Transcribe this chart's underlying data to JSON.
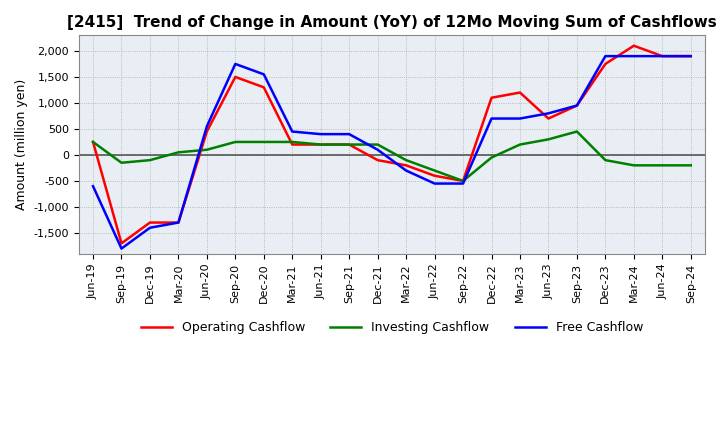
{
  "title": "[2415]  Trend of Change in Amount (YoY) of 12Mo Moving Sum of Cashflows",
  "ylabel": "Amount (million yen)",
  "x_labels": [
    "Jun-19",
    "Sep-19",
    "Dec-19",
    "Mar-20",
    "Jun-20",
    "Sep-20",
    "Dec-20",
    "Mar-21",
    "Jun-21",
    "Sep-21",
    "Dec-21",
    "Mar-22",
    "Jun-22",
    "Sep-22",
    "Dec-22",
    "Mar-23",
    "Jun-23",
    "Sep-23",
    "Dec-23",
    "Mar-24",
    "Jun-24",
    "Sep-24"
  ],
  "operating": [
    250,
    -1700,
    -1300,
    -1300,
    450,
    1500,
    1300,
    200,
    200,
    200,
    -100,
    -200,
    -400,
    -500,
    1100,
    1200,
    700,
    950,
    1750,
    2100,
    1900,
    1900
  ],
  "investing": [
    250,
    -150,
    -100,
    50,
    100,
    250,
    250,
    250,
    200,
    200,
    200,
    -100,
    -300,
    -500,
    -50,
    200,
    300,
    450,
    -100,
    -200,
    -200,
    -200
  ],
  "free": [
    -600,
    -1800,
    -1400,
    -1300,
    550,
    1750,
    1550,
    450,
    400,
    400,
    100,
    -300,
    -550,
    -550,
    700,
    700,
    800,
    950,
    1900,
    1900,
    1900,
    1900
  ],
  "ylim": [
    -1900,
    2300
  ],
  "yticks": [
    -1500,
    -1000,
    -500,
    0,
    500,
    1000,
    1500,
    2000
  ],
  "operating_color": "#ff0000",
  "investing_color": "#008000",
  "free_color": "#0000ff",
  "bg_color": "#ffffff",
  "plot_bg_color": "#e8eef4",
  "grid_color": "#aaaaaa",
  "title_fontsize": 11,
  "axis_fontsize": 9,
  "tick_fontsize": 8,
  "legend_fontsize": 9
}
